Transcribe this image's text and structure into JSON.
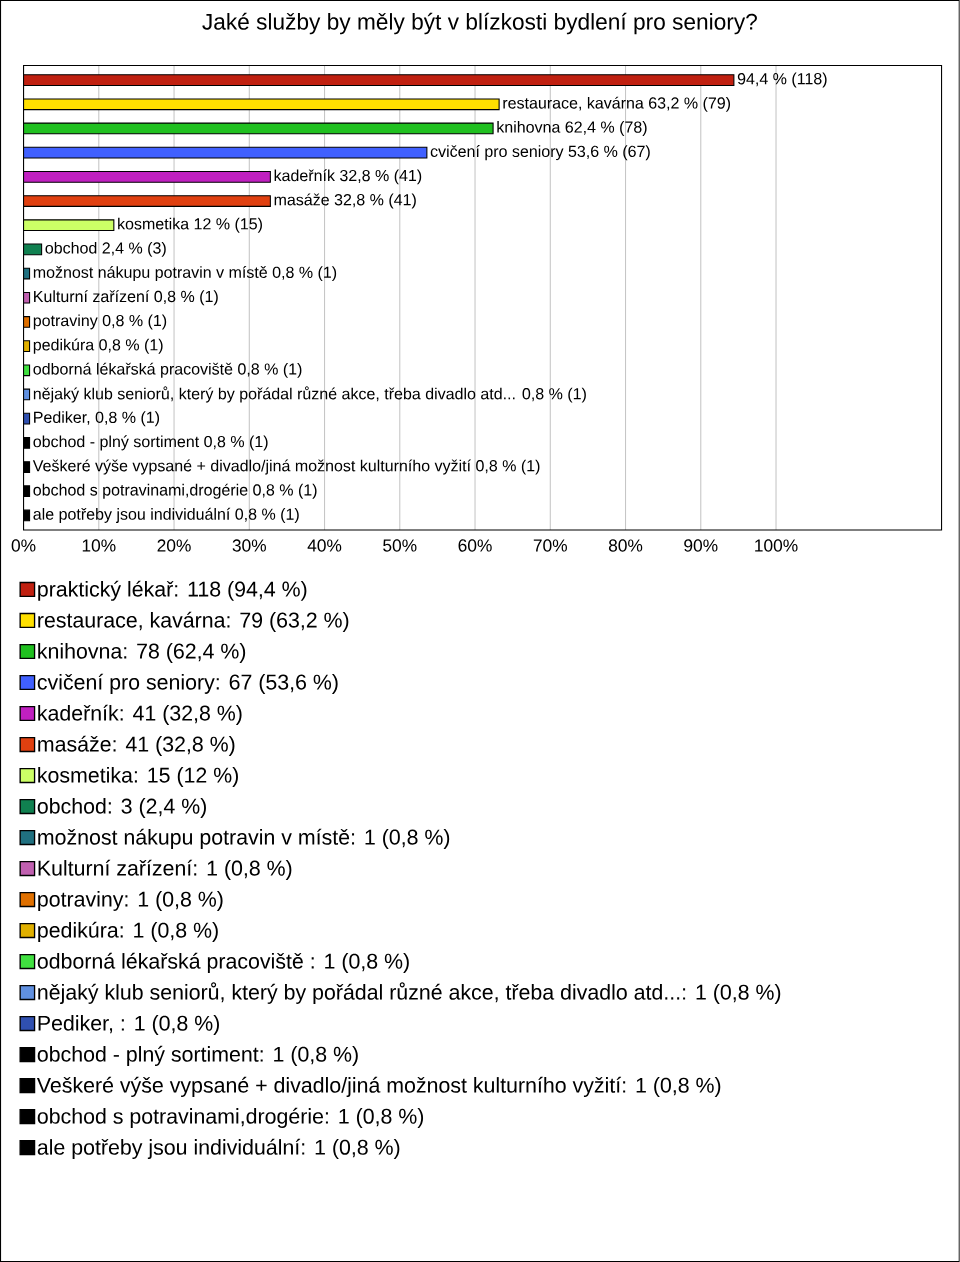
{
  "chart_data": {
    "type": "bar",
    "orientation": "horizontal",
    "title": "Jaké služby by měly být v blízkosti bydlení pro seniory?",
    "categories": [
      "94,4 % (118)",
      "restaurace, kavárna 63,2 % (79)",
      "knihovna 62,4 % (78)",
      "cvičení pro seniory 53,6 % (67)",
      "kadeřník 32,8 % (41)",
      "masáže 32,8 % (41)",
      "kosmetika 12 % (15)",
      "obchod 2,4 % (3)",
      "možnost nákupu potravin v místě 0,8 % (1)",
      "Kulturní zařízení 0,8 % (1)",
      "potraviny 0,8 % (1)",
      "pedikúra 0,8 % (1)",
      "odborná lékařská pracoviště  0,8 % (1)",
      "nějaký klub seniorů, který by pořádal různé akce, třeba divadlo atd... 0,8 % (1)",
      "Pediker,  0,8 % (1)",
      "obchod - plný sortiment 0,8 % (1)",
      "Veškeré výše vypsané + divadlo/jiná možnost kulturního vyžití 0,8 % (1)",
      "obchod s potravinami,drogérie 0,8 % (1)",
      "ale potřeby jsou individuální 0,8 % (1)"
    ],
    "series": [
      {
        "name": "praktický lékař: 118 (94,4 %)",
        "color": "#c02010",
        "values": [
          94.4,
          null,
          null,
          null,
          null,
          null,
          null,
          null,
          null,
          null,
          null,
          null,
          null,
          null,
          null,
          null,
          null,
          null,
          null
        ]
      },
      {
        "name": "restaurace, kavárna: 79 (63,2 %)",
        "color": "#ffe000",
        "values": [
          null,
          63.2,
          null,
          null,
          null,
          null,
          null,
          null,
          null,
          null,
          null,
          null,
          null,
          null,
          null,
          null,
          null,
          null,
          null
        ]
      },
      {
        "name": "knihovna: 78 (62,4 %)",
        "color": "#20c020",
        "values": [
          null,
          null,
          62.4,
          null,
          null,
          null,
          null,
          null,
          null,
          null,
          null,
          null,
          null,
          null,
          null,
          null,
          null,
          null,
          null
        ]
      },
      {
        "name": "cvičení pro seniory: 67 (53,6 %)",
        "color": "#4060ff",
        "values": [
          null,
          null,
          null,
          53.6,
          null,
          null,
          null,
          null,
          null,
          null,
          null,
          null,
          null,
          null,
          null,
          null,
          null,
          null,
          null
        ]
      },
      {
        "name": "kadeřník: 41 (32,8 %)",
        "color": "#c020c0",
        "values": [
          null,
          null,
          null,
          null,
          32.8,
          null,
          null,
          null,
          null,
          null,
          null,
          null,
          null,
          null,
          null,
          null,
          null,
          null,
          null
        ]
      },
      {
        "name": "masáže: 41 (32,8 %)",
        "color": "#e04010",
        "values": [
          null,
          null,
          null,
          null,
          null,
          32.8,
          null,
          null,
          null,
          null,
          null,
          null,
          null,
          null,
          null,
          null,
          null,
          null,
          null
        ]
      },
      {
        "name": "kosmetika: 15 (12 %)",
        "color": "#ccff66",
        "values": [
          null,
          null,
          null,
          null,
          null,
          null,
          12,
          null,
          null,
          null,
          null,
          null,
          null,
          null,
          null,
          null,
          null,
          null,
          null
        ]
      },
      {
        "name": "obchod: 3 (2,4 %)",
        "color": "#108050",
        "values": [
          null,
          null,
          null,
          null,
          null,
          null,
          null,
          2.4,
          null,
          null,
          null,
          null,
          null,
          null,
          null,
          null,
          null,
          null,
          null
        ]
      },
      {
        "name": "možnost nákupu potravin v místě: 1 (0,8 %)",
        "color": "#207080",
        "values": [
          null,
          null,
          null,
          null,
          null,
          null,
          null,
          null,
          0.8,
          null,
          null,
          null,
          null,
          null,
          null,
          null,
          null,
          null,
          null
        ]
      },
      {
        "name": "Kulturní zařízení: 1 (0,8 %)",
        "color": "#c060b0",
        "values": [
          null,
          null,
          null,
          null,
          null,
          null,
          null,
          null,
          null,
          0.8,
          null,
          null,
          null,
          null,
          null,
          null,
          null,
          null,
          null
        ]
      },
      {
        "name": "potraviny: 1 (0,8 %)",
        "color": "#e07000",
        "values": [
          null,
          null,
          null,
          null,
          null,
          null,
          null,
          null,
          null,
          null,
          0.8,
          null,
          null,
          null,
          null,
          null,
          null,
          null,
          null
        ]
      },
      {
        "name": "pedikúra: 1 (0,8 %)",
        "color": "#e0b000",
        "values": [
          null,
          null,
          null,
          null,
          null,
          null,
          null,
          null,
          null,
          null,
          null,
          0.8,
          null,
          null,
          null,
          null,
          null,
          null,
          null
        ]
      },
      {
        "name": "odborná lékařská pracoviště : 1 (0,8 %)",
        "color": "#40e040",
        "values": [
          null,
          null,
          null,
          null,
          null,
          null,
          null,
          null,
          null,
          null,
          null,
          null,
          0.8,
          null,
          null,
          null,
          null,
          null,
          null
        ]
      },
      {
        "name": "nějaký klub seniorů, který by pořádal různé akce, třeba divadlo atd...: 1 (0,8 %)",
        "color": "#6090e0",
        "values": [
          null,
          null,
          null,
          null,
          null,
          null,
          null,
          null,
          null,
          null,
          null,
          null,
          null,
          0.8,
          null,
          null,
          null,
          null,
          null
        ]
      },
      {
        "name": "Pediker, : 1 (0,8 %)",
        "color": "#3050b0",
        "values": [
          null,
          null,
          null,
          null,
          null,
          null,
          null,
          null,
          null,
          null,
          null,
          null,
          null,
          null,
          0.8,
          null,
          null,
          null,
          null
        ]
      },
      {
        "name": "obchod - plný sortiment: 1 (0,8 %)",
        "color": "#000000",
        "values": [
          null,
          null,
          null,
          null,
          null,
          null,
          null,
          null,
          null,
          null,
          null,
          null,
          null,
          null,
          null,
          0.8,
          null,
          null,
          null
        ]
      },
      {
        "name": "Veškeré výše vypsané + divadlo/jiná možnost kulturního vyžití: 1 (0,8 %)",
        "color": "#000000",
        "values": [
          null,
          null,
          null,
          null,
          null,
          null,
          null,
          null,
          null,
          null,
          null,
          null,
          null,
          null,
          null,
          null,
          0.8,
          null,
          null
        ]
      },
      {
        "name": "obchod s potravinami,drogérie: 1 (0,8 %)",
        "color": "#000000",
        "values": [
          null,
          null,
          null,
          null,
          null,
          null,
          null,
          null,
          null,
          null,
          null,
          null,
          null,
          null,
          null,
          null,
          null,
          0.8,
          null
        ]
      },
      {
        "name": "ale potřeby jsou individuální: 1 (0,8 %)",
        "color": "#000000",
        "values": [
          null,
          null,
          null,
          null,
          null,
          null,
          null,
          null,
          null,
          null,
          null,
          null,
          null,
          null,
          null,
          null,
          null,
          null,
          0.8
        ]
      }
    ],
    "xlim": [
      0,
      122
    ],
    "xticks": [
      {
        "value": 0,
        "label": "0%"
      },
      {
        "value": 10,
        "label": "10%"
      },
      {
        "value": 20,
        "label": "20%"
      },
      {
        "value": 30,
        "label": "30%"
      },
      {
        "value": 40,
        "label": "40%"
      },
      {
        "value": 50,
        "label": "50%"
      },
      {
        "value": 60,
        "label": "60%"
      },
      {
        "value": 70,
        "label": "70%"
      },
      {
        "value": 80,
        "label": "80%"
      },
      {
        "value": 90,
        "label": "90%"
      },
      {
        "value": 100,
        "label": "100%"
      }
    ],
    "grid": "x",
    "legend": "bottom"
  }
}
